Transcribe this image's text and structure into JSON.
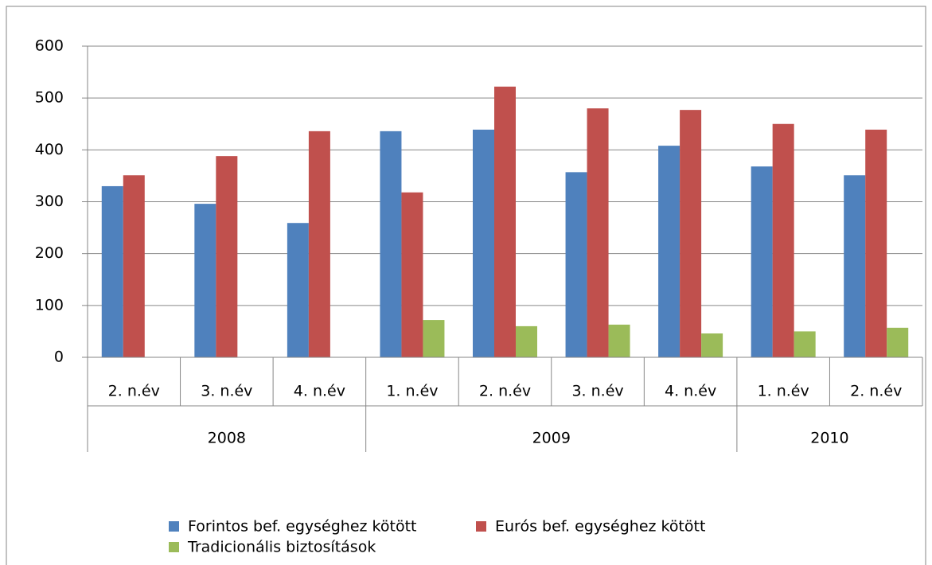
{
  "chart_data": {
    "type": "bar",
    "groups": [
      {
        "name": "2008",
        "categories": [
          "2. n.év",
          "3. n.év",
          "4. n.év"
        ]
      },
      {
        "name": "2009",
        "categories": [
          "1. n.év",
          "2. n.év",
          "3. n.év",
          "4. n.év"
        ]
      },
      {
        "name": "2010",
        "categories": [
          "1. n.év",
          "2. n.év"
        ]
      }
    ],
    "series": [
      {
        "name": "Forintos bef. egységhez kötött",
        "color": "#4f81bd",
        "values": [
          330,
          296,
          259,
          436,
          439,
          357,
          408,
          368,
          351
        ]
      },
      {
        "name": "Eurós bef. egységhez kötött",
        "color": "#c0504d",
        "values": [
          351,
          388,
          436,
          318,
          522,
          480,
          477,
          450,
          439
        ]
      },
      {
        "name": "Tradicionális biztosítások",
        "color": "#9bbb59",
        "values": [
          null,
          null,
          null,
          72,
          60,
          63,
          46,
          50,
          57
        ]
      }
    ],
    "ylim": [
      0,
      600
    ],
    "yticks": [
      0,
      100,
      200,
      300,
      400,
      500,
      600
    ],
    "grid": true,
    "legend": "bottom"
  }
}
